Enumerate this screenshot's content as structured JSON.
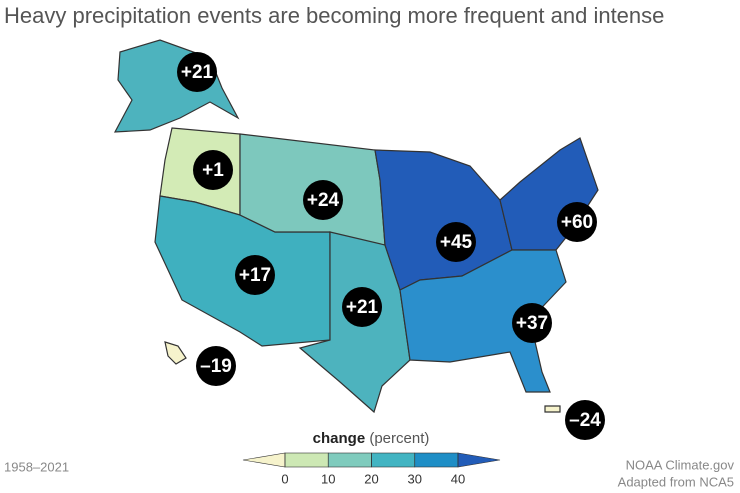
{
  "title": "Heavy precipitation events are becoming more frequent and intense",
  "regions": [
    {
      "label": "+21",
      "color": "#4db3be"
    },
    {
      "label": "+1",
      "color": "#d3ebb6"
    },
    {
      "label": "+24",
      "color": "#3fb0bf"
    },
    {
      "label": "+17",
      "color": "#7dc8bd"
    },
    {
      "label": "+21",
      "color": "#4db3be"
    },
    {
      "label": "+45",
      "color": "#225cb8"
    },
    {
      "label": "+60",
      "color": "#225cb8"
    },
    {
      "label": "+37",
      "color": "#2b8fcc"
    },
    {
      "label": "–19",
      "color": "#f6f3cc"
    },
    {
      "label": "–24",
      "color": "#f6f3cc"
    }
  ],
  "legend": {
    "title": "change",
    "unit": "(percent)",
    "ticks": [
      0,
      10,
      20,
      30,
      40
    ],
    "colors": [
      "#f6f3cc",
      "#cde8b4",
      "#7fcbbd",
      "#42b4c2",
      "#1e8ec6",
      "#225cb8"
    ]
  },
  "period": "1958–2021",
  "source": "NOAA Climate.gov",
  "credit": "Adapted from NCA5"
}
